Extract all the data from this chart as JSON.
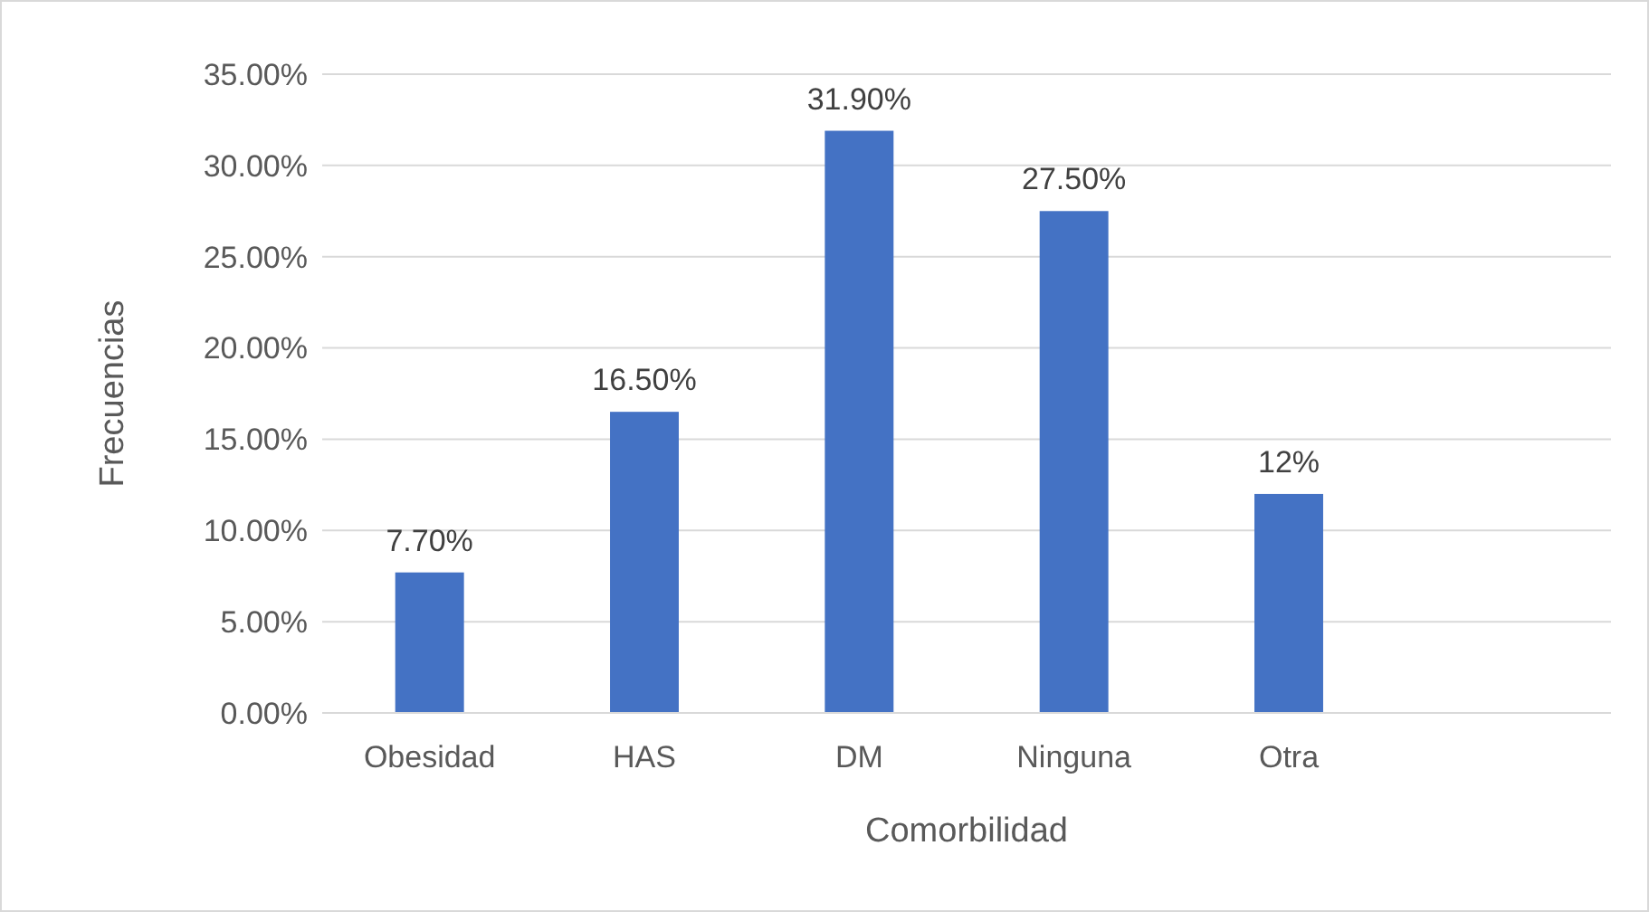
{
  "chart_data": {
    "type": "bar",
    "xlabel": "Comorbilidad",
    "ylabel": "Frecuencias",
    "categories": [
      "Obesidad",
      "HAS",
      "DM",
      "Ninguna",
      "Otra",
      null
    ],
    "values": [
      7.7,
      16.5,
      31.9,
      27.5,
      12,
      null
    ],
    "value_labels": [
      "7.70%",
      "16.50%",
      "31.90%",
      "27.50%",
      "12%",
      null
    ],
    "color": "#4472c4",
    "ylim": [
      0,
      35
    ],
    "yticks": [
      {
        "value": 0,
        "label": "0.00%"
      },
      {
        "value": 5,
        "label": "5.00%"
      },
      {
        "value": 10,
        "label": "10.00%"
      },
      {
        "value": 15,
        "label": "15.00%"
      },
      {
        "value": 20,
        "label": "20.00%"
      },
      {
        "value": 25,
        "label": "25.00%"
      },
      {
        "value": 30,
        "label": "30.00%"
      },
      {
        "value": 35,
        "label": "35.00%"
      }
    ],
    "grid": "y"
  }
}
